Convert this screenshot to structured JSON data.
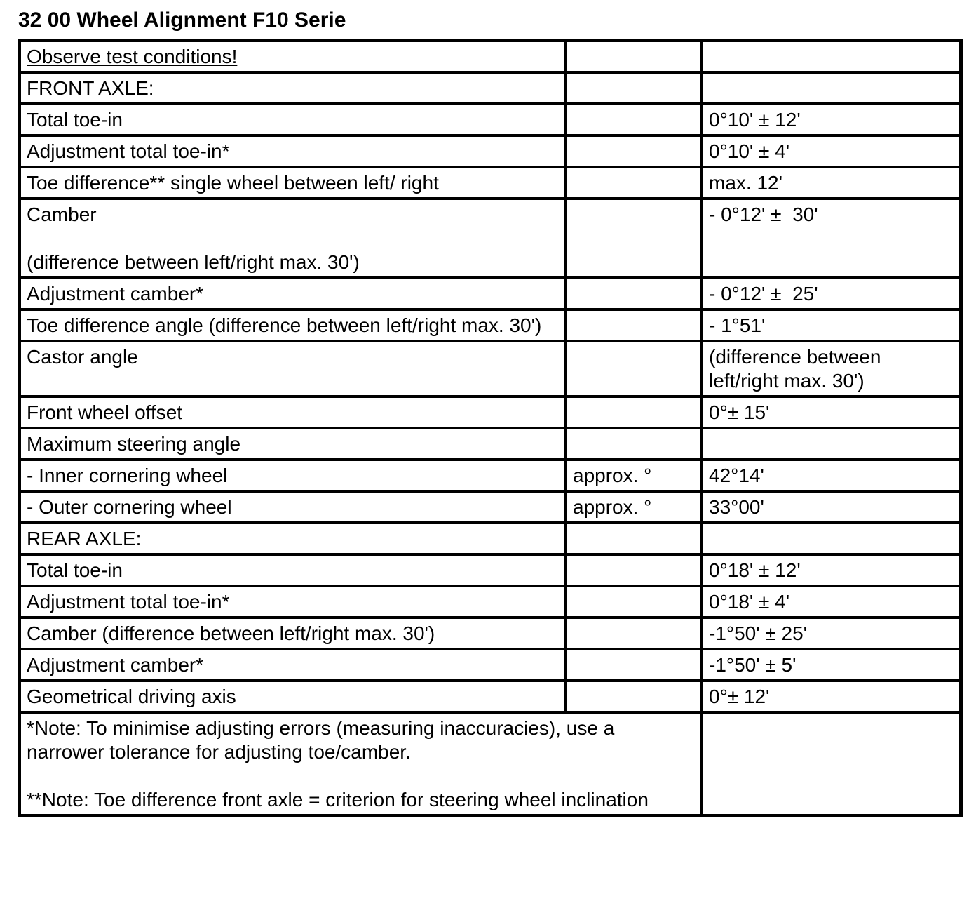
{
  "title": "32 00 Wheel Alignment F10 Serie",
  "table": {
    "rows": [
      {
        "label": "Observe test conditions!",
        "unit": "",
        "value": "",
        "underline": true
      },
      {
        "label": "FRONT AXLE:",
        "unit": "",
        "value": ""
      },
      {
        "label": "Total toe-in",
        "unit": "",
        "value": "0°10' ± 12'"
      },
      {
        "label": "Adjustment total toe-in*",
        "unit": "",
        "value": "0°10' ± 4'"
      },
      {
        "label": "Toe difference** single wheel between left/ right",
        "unit": "",
        "value": "max. 12'"
      },
      {
        "label": "Camber\n\n(difference between left/right max. 30')",
        "unit": "",
        "value": "- 0°12' ±  30'"
      },
      {
        "label": "Adjustment camber*",
        "unit": "",
        "value": "- 0°12' ±  25'"
      },
      {
        "label": "Toe difference angle (difference between left/right max. 30')",
        "unit": "",
        "value": "- 1°51'"
      },
      {
        "label": "Castor angle",
        "unit": "",
        "value": "(difference between left/right max. 30')"
      },
      {
        "label": "Front wheel offset",
        "unit": "",
        "value": "0°± 15'"
      },
      {
        "label": "Maximum steering angle",
        "unit": "",
        "value": ""
      },
      {
        "label": "- Inner cornering wheel",
        "unit": "approx. °",
        "value": "42°14'"
      },
      {
        "label": "- Outer cornering wheel",
        "unit": "approx. °",
        "value": "33°00'"
      },
      {
        "label": "REAR AXLE:",
        "unit": "",
        "value": ""
      },
      {
        "label": "Total toe-in",
        "unit": "",
        "value": "0°18' ± 12'"
      },
      {
        "label": "Adjustment total toe-in*",
        "unit": "",
        "value": "0°18' ± 4'"
      },
      {
        "label": "Camber (difference between left/right max. 30')",
        "unit": "",
        "value": "-1°50' ± 25'"
      },
      {
        "label": "Adjustment camber*",
        "unit": "",
        "value": "-1°50' ± 5'"
      },
      {
        "label": "Geometrical driving axis",
        "unit": "",
        "value": "0°± 12'"
      }
    ],
    "notes": [
      "*Note: To minimise adjusting errors (measuring inaccuracies), use a narrower tolerance for adjusting toe/camber.",
      "**Note: Toe difference front axle = criterion for steering wheel inclination"
    ],
    "notes_value": ""
  }
}
